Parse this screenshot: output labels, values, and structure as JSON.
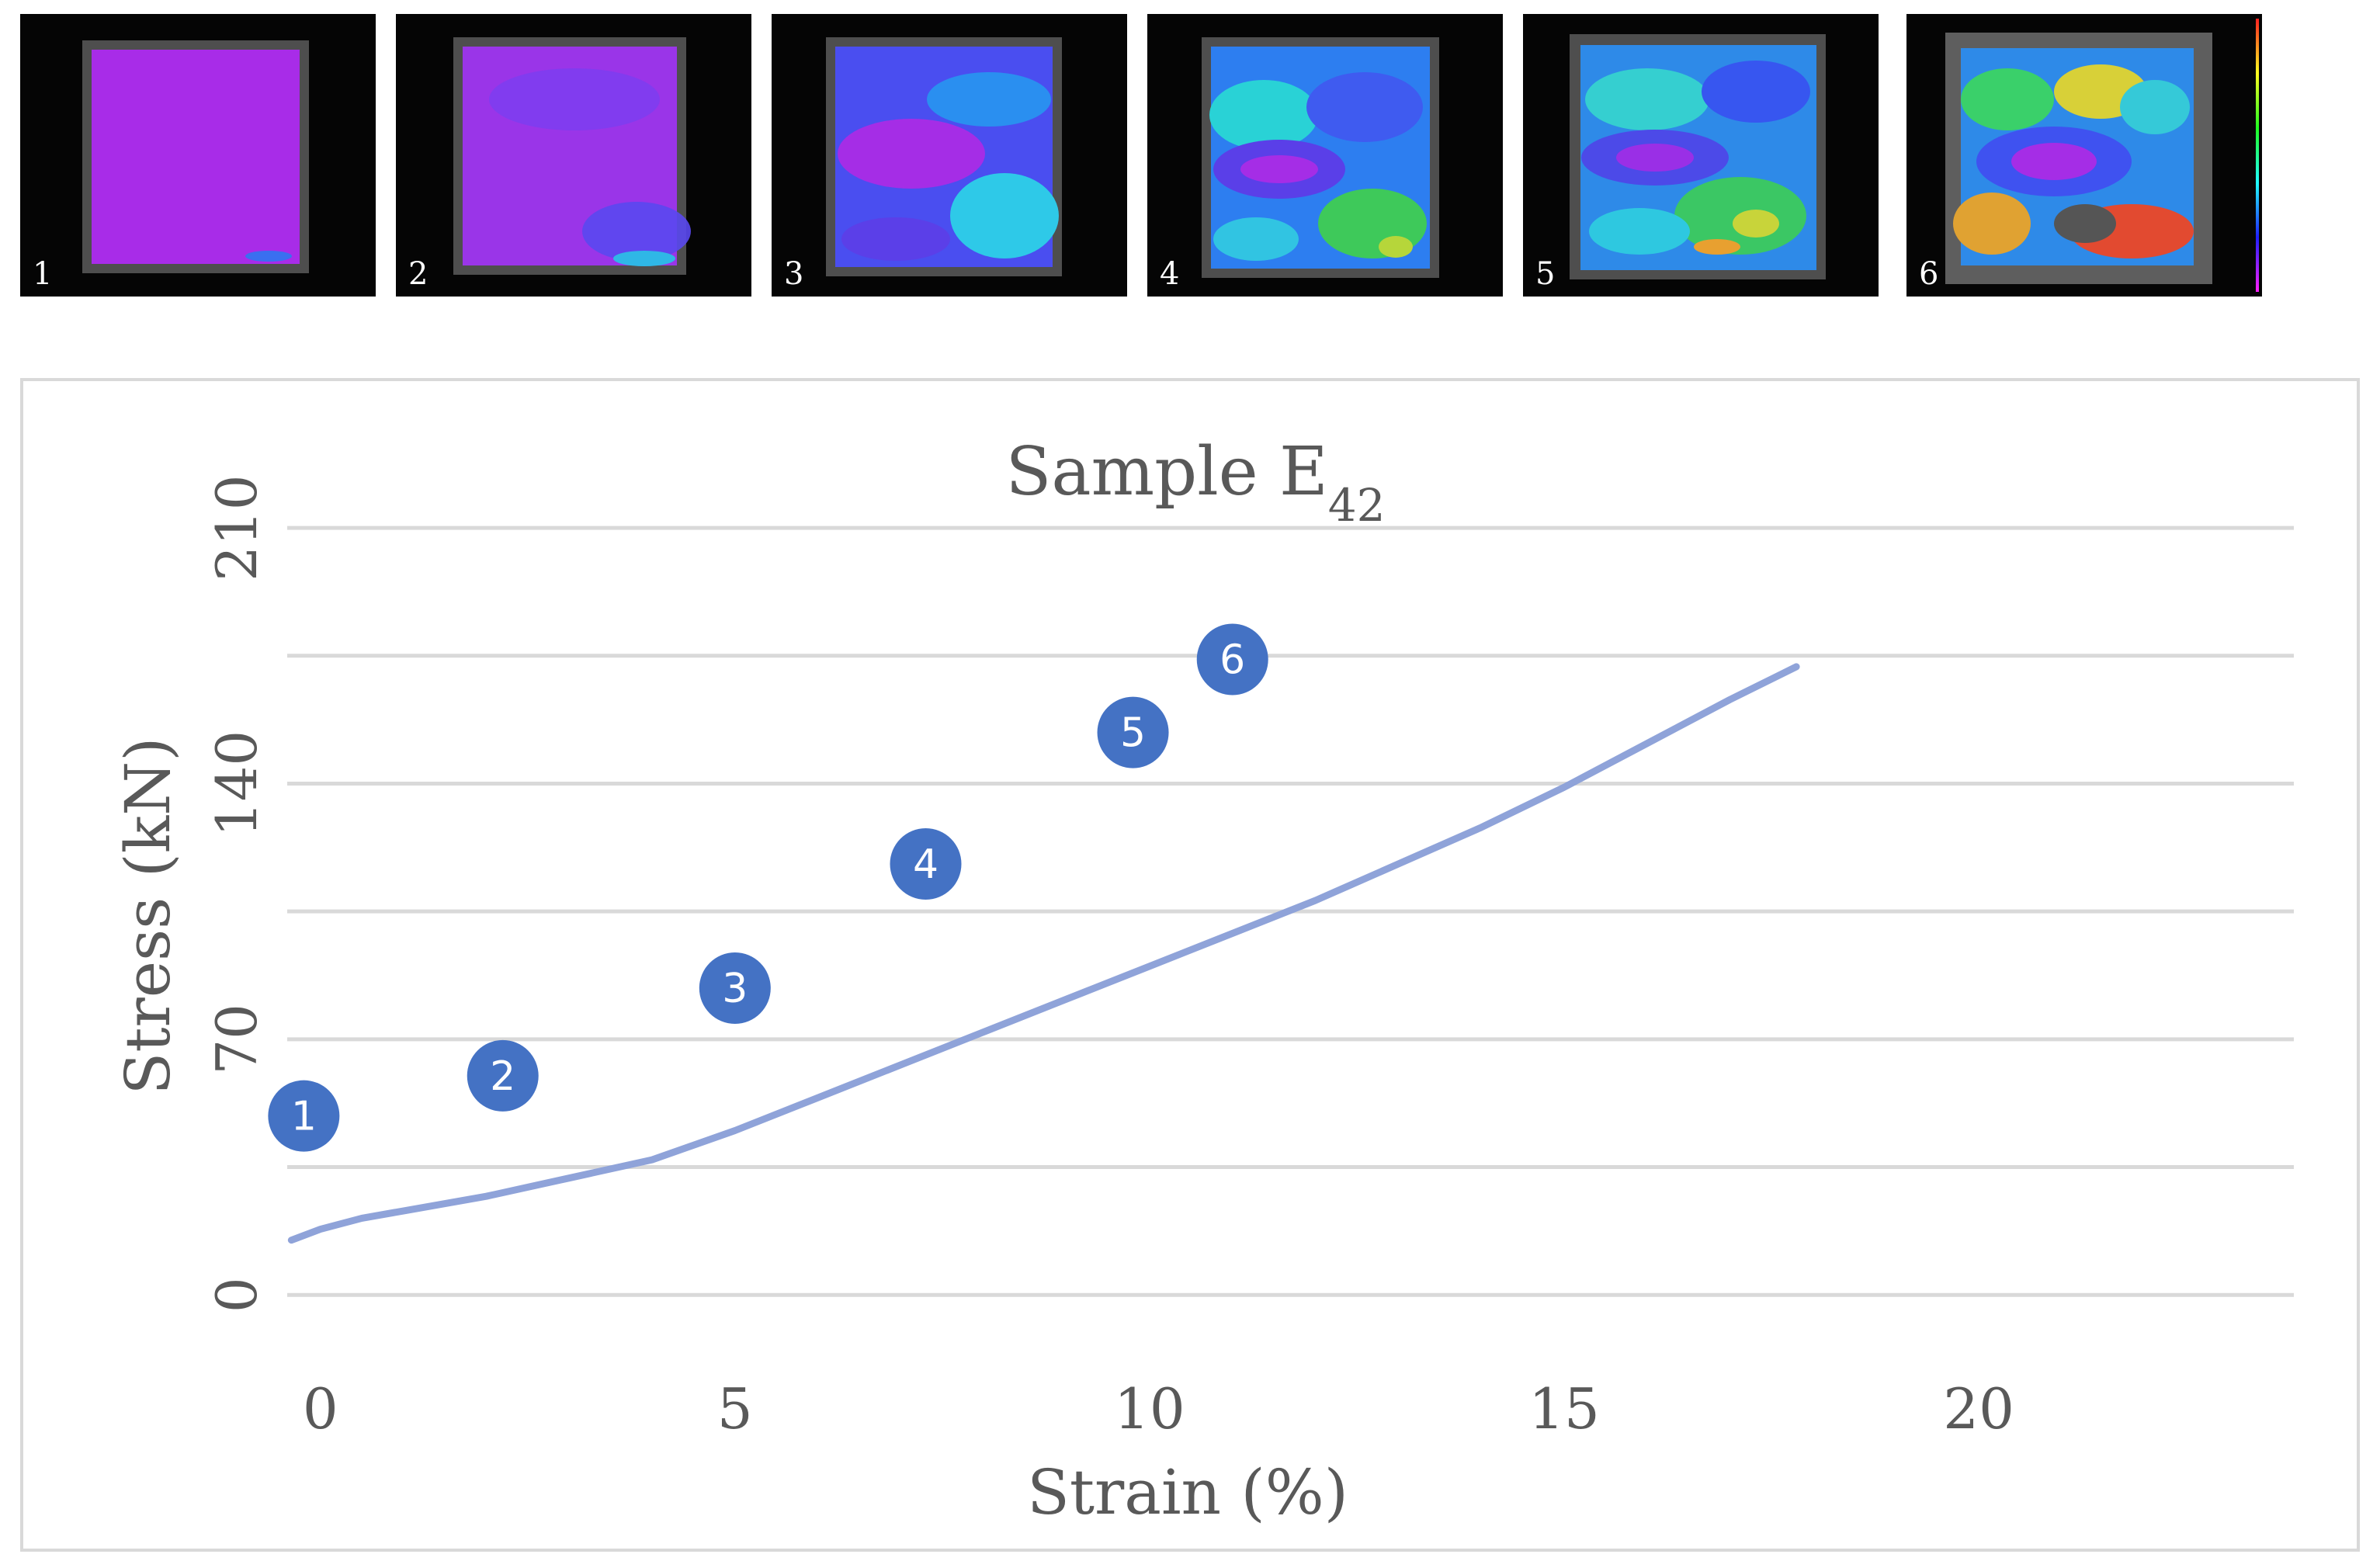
{
  "dic_panels": [
    {
      "label": "1"
    },
    {
      "label": "2"
    },
    {
      "label": "3"
    },
    {
      "label": "4"
    },
    {
      "label": "5"
    },
    {
      "label": "6"
    }
  ],
  "chart_data": {
    "type": "line",
    "title": "Sample E",
    "title_subscript": "42",
    "xlabel": "Strain (%)",
    "ylabel": "Stress (kN)",
    "xlim": [
      -0.4,
      23.8
    ],
    "ylim": [
      -28,
      230
    ],
    "x_ticks": [
      0,
      5,
      10,
      15,
      20
    ],
    "x_tick_labels": [
      "0",
      "5",
      "10",
      "15",
      "20"
    ],
    "y_ticks": [
      0,
      70,
      140,
      210
    ],
    "y_tick_labels": [
      "0",
      "70",
      "140",
      "210"
    ],
    "gridlines": [
      0,
      35,
      70,
      105,
      140,
      175,
      210
    ],
    "grid": true,
    "line_color": "#8fa3d9",
    "marker_color": "#4472c4",
    "series": [
      {
        "name": "Sample E42",
        "x": [
          -0.35,
          0.0,
          0.5,
          1.0,
          2.0,
          3.0,
          4.0,
          5.0,
          6.0,
          7.0,
          8.0,
          9.0,
          10.0,
          11.0,
          12.0,
          13.0,
          14.0,
          15.0,
          16.0,
          17.0,
          17.8
        ],
        "y": [
          15,
          18,
          21,
          23,
          27,
          32,
          37,
          45,
          54,
          63,
          72,
          81,
          90,
          99,
          108,
          118,
          128,
          139,
          151,
          163,
          172
        ]
      }
    ],
    "markers": [
      {
        "label": "1",
        "x": -0.2,
        "y": 49
      },
      {
        "label": "2",
        "x": 2.2,
        "y": 60
      },
      {
        "label": "3",
        "x": 5.0,
        "y": 84
      },
      {
        "label": "4",
        "x": 7.3,
        "y": 118
      },
      {
        "label": "5",
        "x": 9.8,
        "y": 154
      },
      {
        "label": "6",
        "x": 11.0,
        "y": 174
      }
    ]
  }
}
